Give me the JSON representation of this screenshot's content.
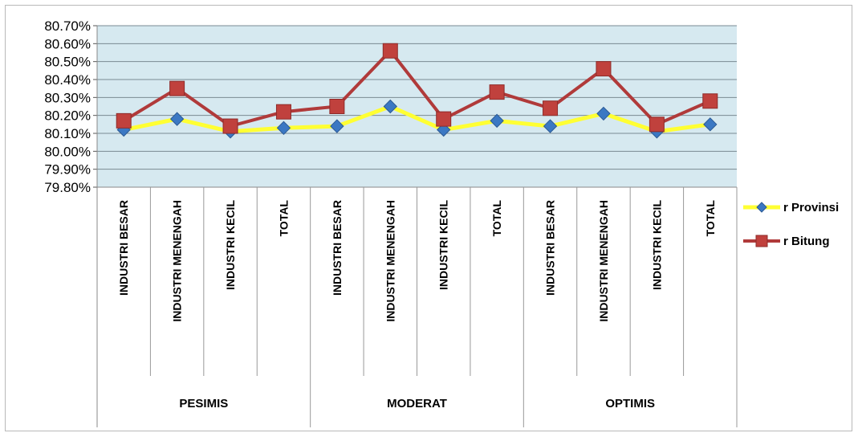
{
  "chart_data": {
    "type": "line",
    "title": "",
    "xlabel": "",
    "ylabel": "",
    "ylim": [
      79.8,
      80.7
    ],
    "y_ticks": [
      "80.70%",
      "80.60%",
      "80.50%",
      "80.40%",
      "80.30%",
      "80.20%",
      "80.10%",
      "80.00%",
      "79.90%",
      "79.80%"
    ],
    "y_tick_values": [
      80.7,
      80.6,
      80.5,
      80.4,
      80.3,
      80.2,
      80.1,
      80.0,
      79.9,
      79.8
    ],
    "grid": true,
    "legend_position": "right",
    "categories": [
      "INDUSTRI BESAR",
      "INDUSTRI MENENGAH",
      "INDUSTRI KECIL",
      "TOTAL",
      "INDUSTRI BESAR",
      "INDUSTRI MENENGAH",
      "INDUSTRI KECIL",
      "TOTAL",
      "INDUSTRI BESAR",
      "INDUSTRI MENENGAH",
      "INDUSTRI KECIL",
      "TOTAL"
    ],
    "groups": [
      {
        "label": "PESIMIS",
        "count": 4
      },
      {
        "label": "MODERAT",
        "count": 4
      },
      {
        "label": "OPTIMIS",
        "count": 4
      }
    ],
    "series": [
      {
        "name": "r Provinsi",
        "color": "#ffff33",
        "marker": "diamond",
        "marker_color": "#3b78c3",
        "values": [
          80.12,
          80.18,
          80.11,
          80.13,
          80.14,
          80.25,
          80.12,
          80.17,
          80.14,
          80.21,
          80.11,
          80.15
        ]
      },
      {
        "name": "r Bitung",
        "color": "#b03a3a",
        "marker": "square",
        "marker_color": "#c0413d",
        "values": [
          80.17,
          80.35,
          80.14,
          80.22,
          80.25,
          80.56,
          80.18,
          80.33,
          80.24,
          80.46,
          80.15,
          80.28
        ]
      }
    ],
    "plot_background": "#d6e9f0"
  }
}
